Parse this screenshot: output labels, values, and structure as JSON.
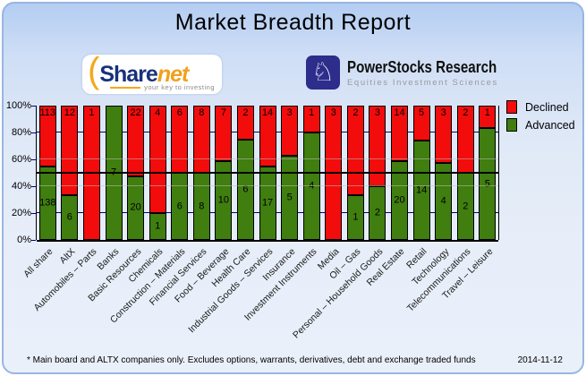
{
  "title": "Market Breadth Report",
  "logos": {
    "sharenet": {
      "arc": "(",
      "word_share": "Share",
      "word_net": "net",
      "tagline": "your key to investing"
    },
    "powerstocks": {
      "icon": "knight-chess-icon",
      "knight_glyph": "♘",
      "name": "PowerStocks  Research",
      "subtitle": "Equities Investment Sciences"
    }
  },
  "legend": [
    {
      "label": "Declined",
      "color": "#f20c0c"
    },
    {
      "label": "Advanced",
      "color": "#3f7e0f"
    }
  ],
  "footer": {
    "note": "* Main board and ALTX companies only. Excludes options, warrants, derivatives, debt and exchange traded funds",
    "date": "2014-11-12"
  },
  "chart_data": {
    "type": "bar",
    "stacked": true,
    "normalized": "percent",
    "title": "Market Breadth Report",
    "xlabel": "",
    "ylabel": "",
    "ylim": [
      0,
      100
    ],
    "yticks": [
      "0%",
      "20%",
      "40%",
      "60%",
      "80%",
      "100%"
    ],
    "legend_position": "top-right",
    "categories": [
      "All share",
      "AltX",
      "Automobiles – Parts",
      "Banks",
      "Basic Resources",
      "Chemicals",
      "Construction – Materials",
      "Financial Services",
      "Food – Beverage",
      "Health Care",
      "Industrial Goods – Services",
      "Insurance",
      "Investment Instruments",
      "Media",
      "Oil – Gas",
      "Personal – Household Goods",
      "Real Estate",
      "Retail",
      "Technology",
      "Telecommunications",
      "Travel – Leisure"
    ],
    "series": [
      {
        "name": "Declined",
        "color": "#f20c0c",
        "values": [
          113,
          12,
          1,
          0,
          22,
          4,
          6,
          8,
          7,
          2,
          14,
          3,
          1,
          3,
          2,
          3,
          14,
          5,
          3,
          2,
          1
        ]
      },
      {
        "name": "Advanced",
        "color": "#3f7e0f",
        "values": [
          138,
          6,
          0,
          7,
          20,
          1,
          6,
          8,
          10,
          6,
          17,
          5,
          4,
          0,
          1,
          2,
          20,
          14,
          4,
          2,
          5
        ]
      }
    ],
    "gridlines": [
      {
        "pct": 20,
        "color": "#000080",
        "over_bars": false
      },
      {
        "pct": 40,
        "color": "#c0c0c0",
        "over_bars": true
      },
      {
        "pct": 60,
        "color": "#c0c0c0",
        "over_bars": true
      },
      {
        "pct": 80,
        "color": "#000080",
        "over_bars": false
      }
    ],
    "reference_line": {
      "pct": 50,
      "color": "#000000"
    }
  }
}
